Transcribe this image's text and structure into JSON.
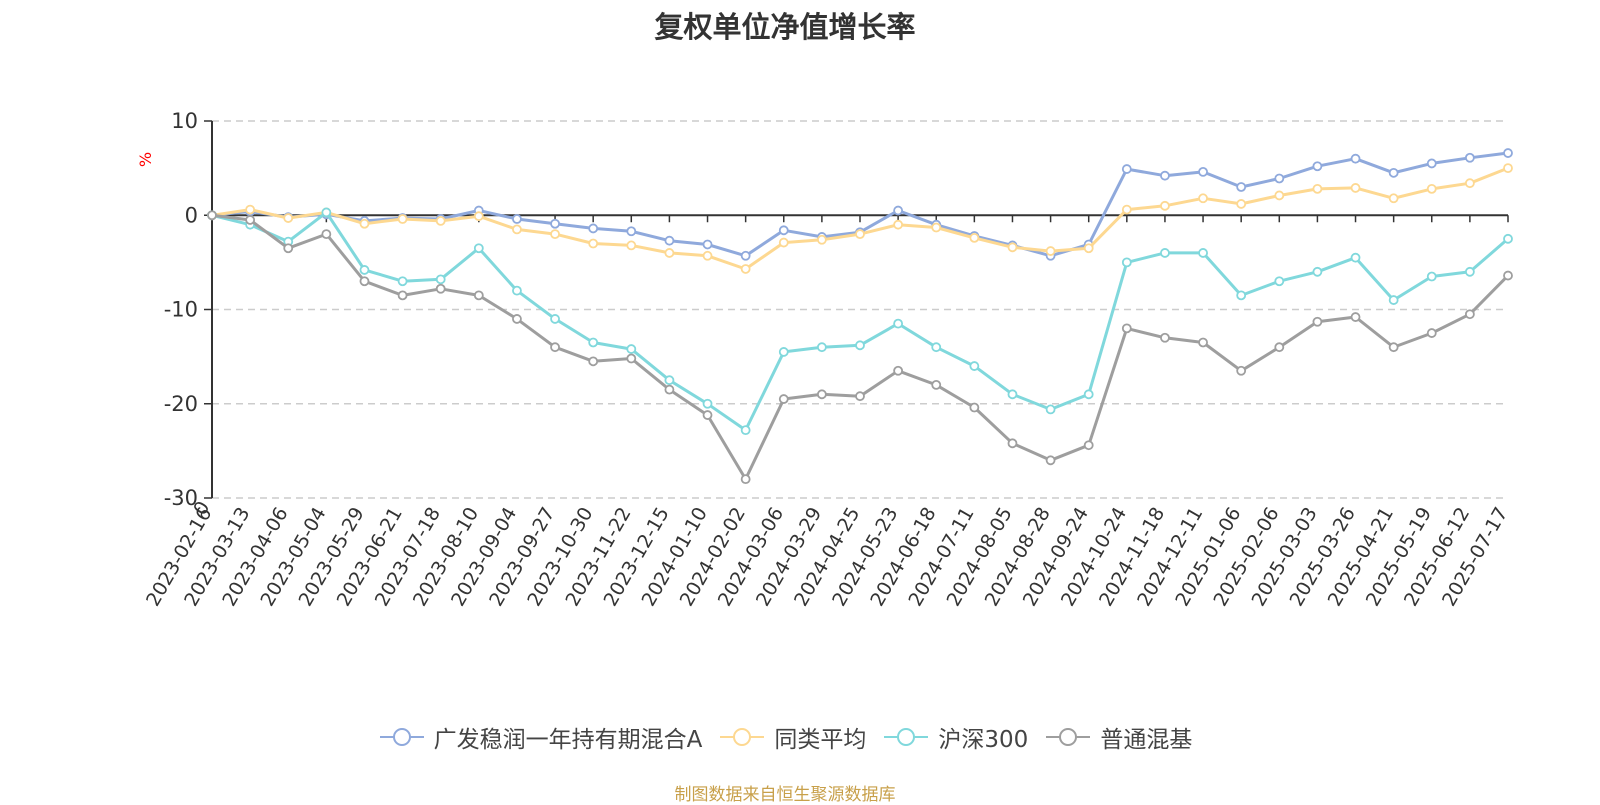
{
  "chart_data": {
    "type": "line",
    "title": "复权单位净值增长率",
    "ylabel": "%",
    "ylim": [
      -30,
      10
    ],
    "yticks": [
      10,
      0,
      -10,
      -20,
      -30
    ],
    "grid": true,
    "legend_position": "bottom",
    "x_start_label": "0",
    "x": [
      "2023-02-16",
      "2023-03-13",
      "2023-04-06",
      "2023-05-04",
      "2023-05-29",
      "2023-06-21",
      "2023-07-18",
      "2023-08-10",
      "2023-09-04",
      "2023-09-27",
      "2023-10-30",
      "2023-11-22",
      "2023-12-15",
      "2024-01-10",
      "2024-02-02",
      "2024-03-06",
      "2024-03-29",
      "2024-04-25",
      "2024-05-23",
      "2024-06-18",
      "2024-07-11",
      "2024-08-05",
      "2024-08-28",
      "2024-09-24",
      "2024-10-24",
      "2024-11-18",
      "2024-12-11",
      "2025-01-06",
      "2025-02-06",
      "2025-03-03",
      "2025-03-26",
      "2025-04-21",
      "2025-05-19",
      "2025-06-12",
      "2025-07-17"
    ],
    "series": [
      {
        "name": "广发稳润一年持有期混合A",
        "color": "#8fa9dc",
        "values": [
          0,
          0.4,
          -0.2,
          0.1,
          -0.6,
          -0.3,
          -0.4,
          0.5,
          -0.4,
          -0.9,
          -1.4,
          -1.7,
          -2.7,
          -3.1,
          -4.3,
          -1.6,
          -2.3,
          -1.8,
          0.5,
          -1.0,
          -2.2,
          -3.2,
          -4.3,
          -3.1,
          4.9,
          4.2,
          4.6,
          3.0,
          3.9,
          5.2,
          6.0,
          4.5,
          5.5,
          6.1,
          6.6
        ]
      },
      {
        "name": "同类平均",
        "color": "#fdd891",
        "values": [
          0,
          0.6,
          -0.3,
          0.3,
          -0.9,
          -0.4,
          -0.6,
          -0.1,
          -1.5,
          -2.0,
          -3.0,
          -3.2,
          -4.0,
          -4.3,
          -5.7,
          -2.9,
          -2.6,
          -2.0,
          -1.0,
          -1.3,
          -2.4,
          -3.4,
          -3.8,
          -3.5,
          0.6,
          1.0,
          1.8,
          1.2,
          2.1,
          2.8,
          2.9,
          1.8,
          2.8,
          3.4,
          5.0
        ]
      },
      {
        "name": "沪深300",
        "color": "#80d8dc",
        "values": [
          0,
          -1.0,
          -2.8,
          0.3,
          -5.8,
          -7.0,
          -6.8,
          -3.5,
          -8.0,
          -11.0,
          -13.5,
          -14.2,
          -17.5,
          -20.0,
          -22.8,
          -14.5,
          -14.0,
          -13.8,
          -11.5,
          -14.0,
          -16.0,
          -19.0,
          -20.6,
          -19.0,
          -5.0,
          -4.0,
          -4.0,
          -8.5,
          -7.0,
          -6.0,
          -4.5,
          -9.0,
          -6.5,
          -6.0,
          -2.5
        ]
      },
      {
        "name": "普通混基",
        "color": "#9e9e9e",
        "values": [
          0,
          -0.5,
          -3.5,
          -2.0,
          -7.0,
          -8.5,
          -7.8,
          -8.5,
          -11.0,
          -14.0,
          -15.5,
          -15.2,
          -18.5,
          -21.2,
          -28.0,
          -19.5,
          -19.0,
          -19.2,
          -16.5,
          -18.0,
          -20.4,
          -24.2,
          -26.0,
          -24.4,
          -12.0,
          -13.0,
          -13.5,
          -16.5,
          -14.0,
          -11.3,
          -10.8,
          -14.0,
          -12.5,
          -10.5,
          -6.4
        ]
      }
    ]
  },
  "source_text": "制图数据来自恒生聚源数据库"
}
